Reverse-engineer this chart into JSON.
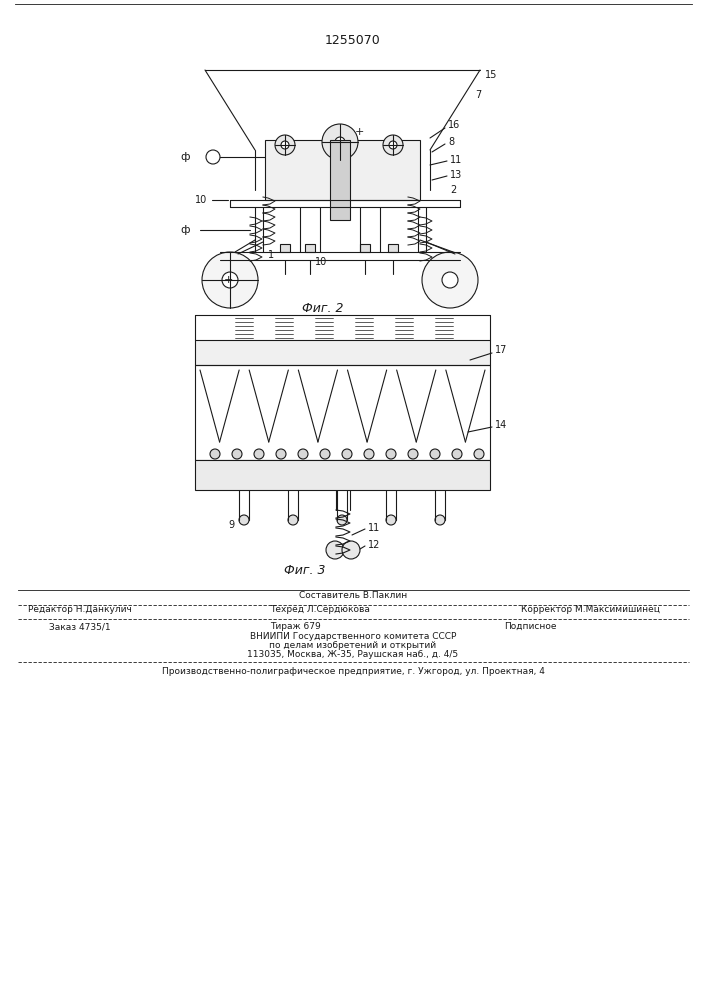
{
  "patent_number": "1255070",
  "bg_color": "#ffffff",
  "line_color": "#1a1a1a",
  "fig2_caption": "Фиг. 2",
  "fig3_caption": "Фиг. 3",
  "footer_line1_left": "Редактор Н.Данкулич",
  "footer_line1_center_top": "Составитель В.Паклин",
  "footer_line1_center": "Техред Л.Сердюкова",
  "footer_line1_right": "Корректор М.Максимишинец",
  "footer_line2_left": "Заказ 4735/1",
  "footer_line2_center": "Тираж 679",
  "footer_line2_right": "Подписное",
  "footer_vnipi": "ВНИИПИ Государственного комитета СССР",
  "footer_vnipi2": "по делам изобретений и открытий",
  "footer_address": "113035, Москва, Ж-35, Раушская наб., д. 4/5",
  "footer_production": "Производственно-полиграфическое предприятие, г. Ужгород, ул. Проектная, 4"
}
